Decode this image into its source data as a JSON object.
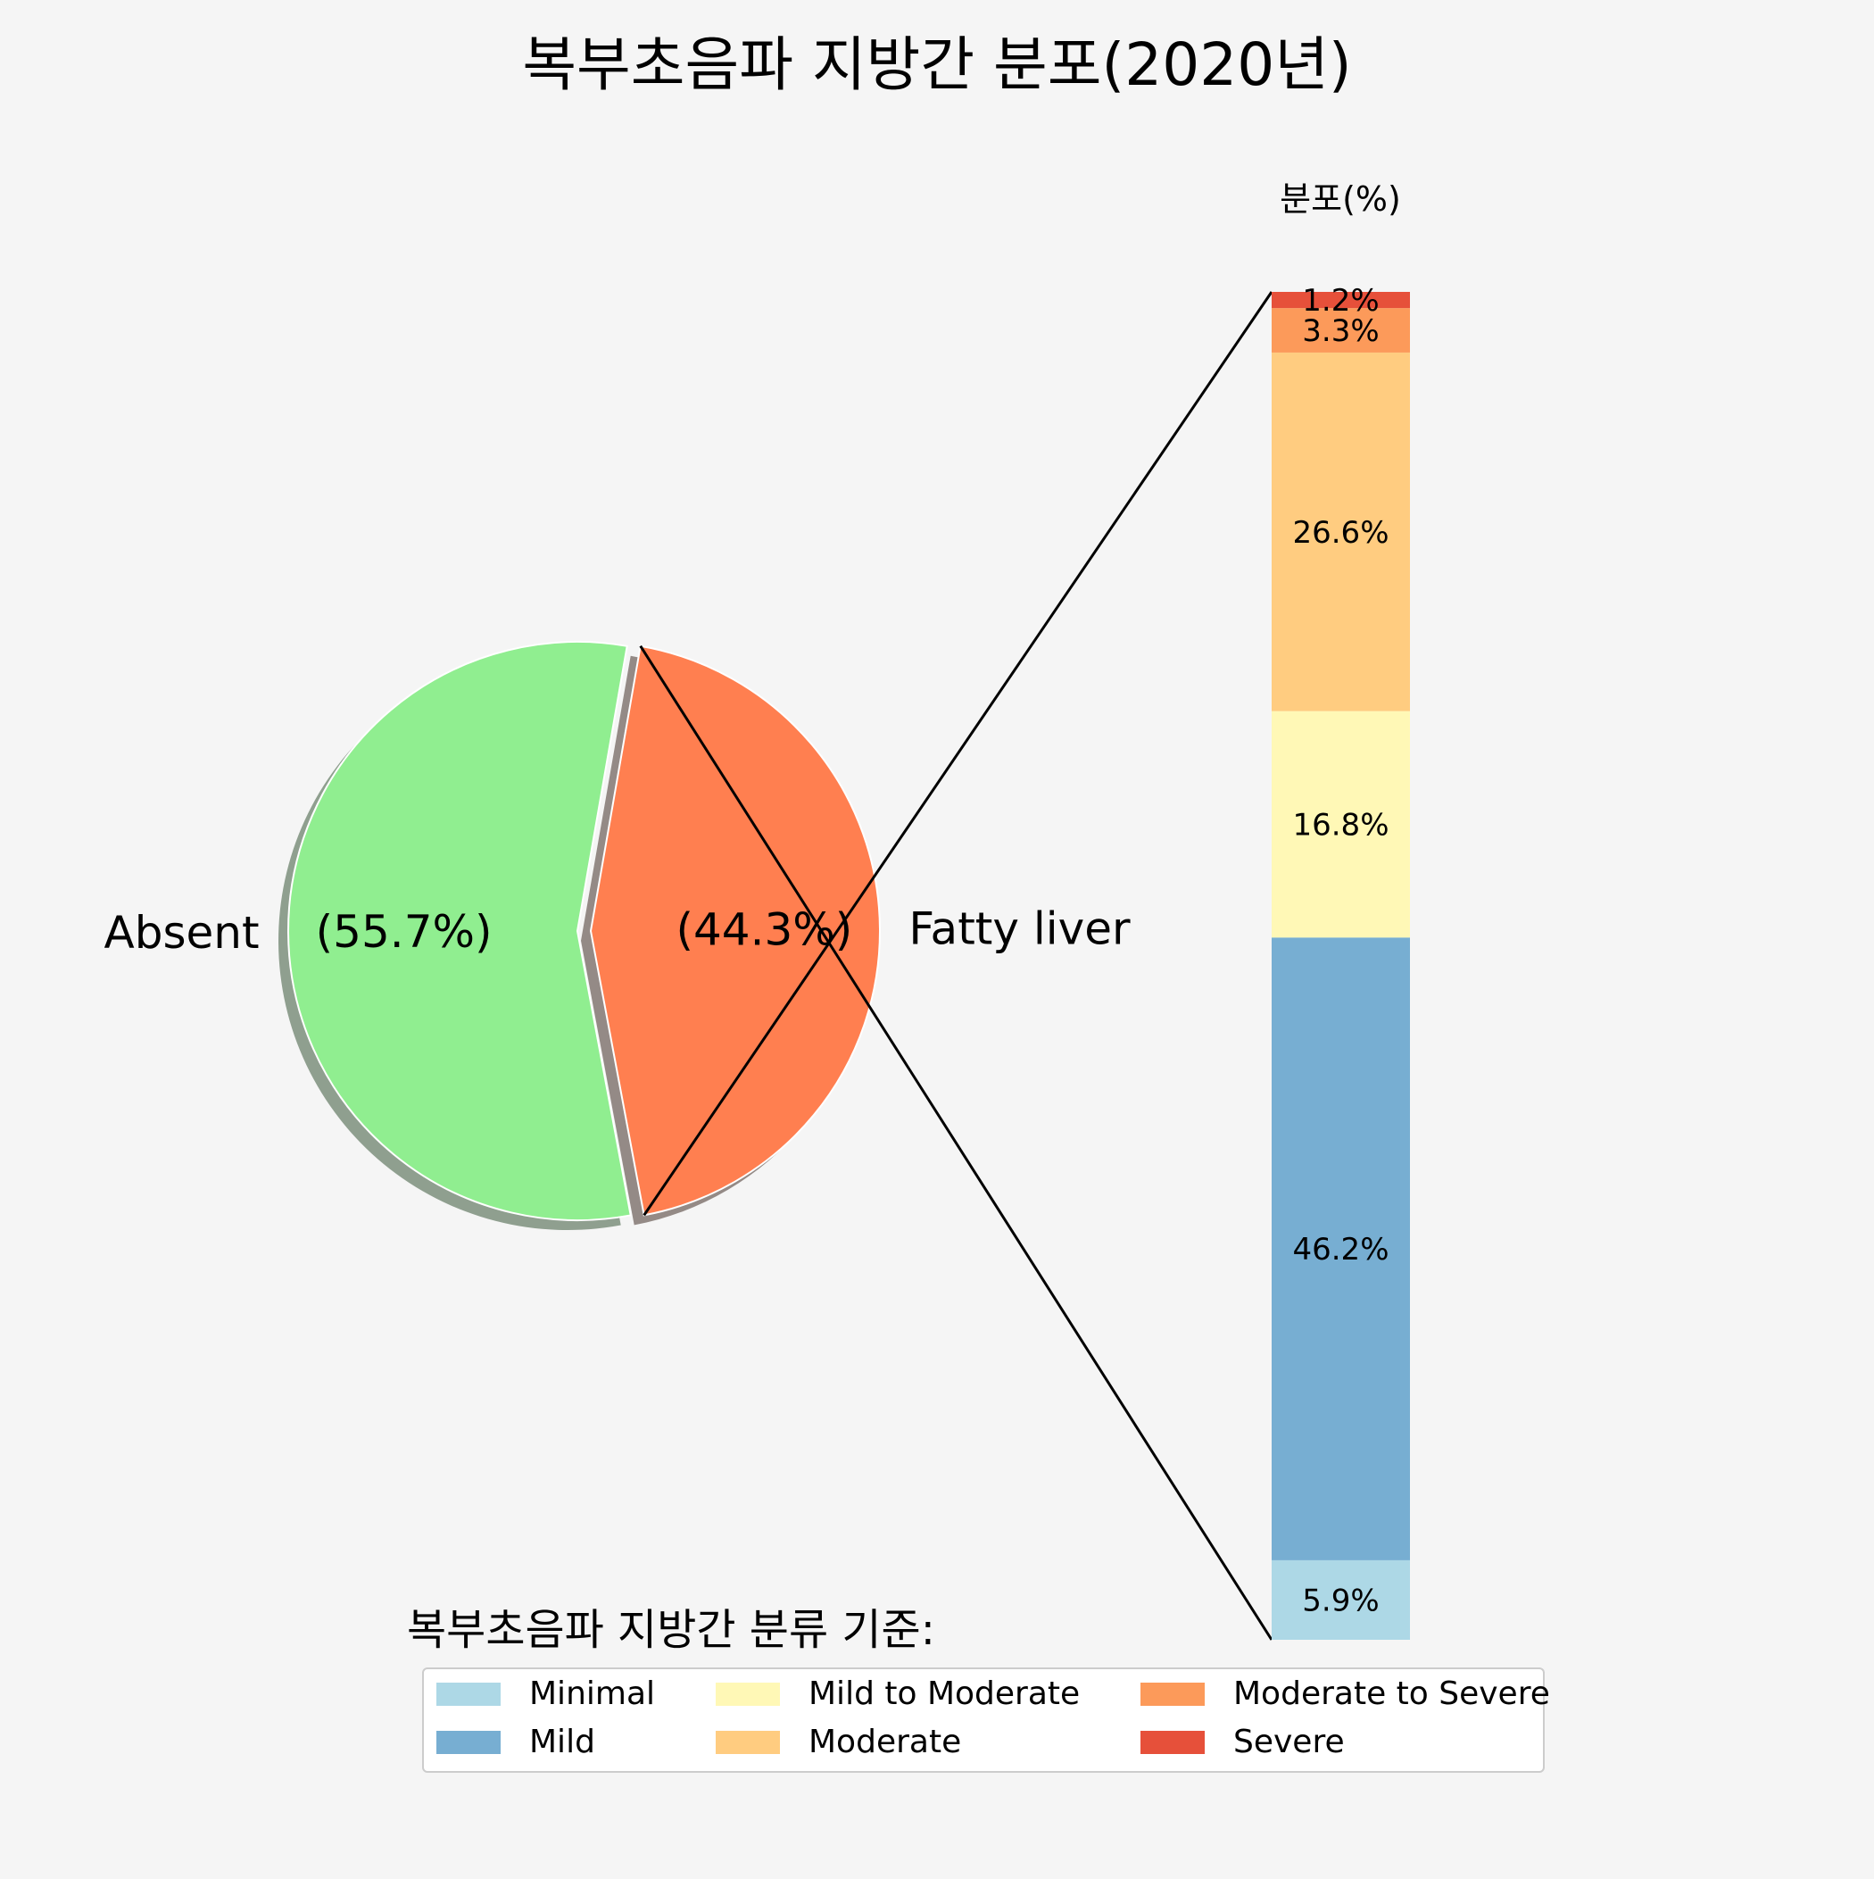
{
  "chart_data": [
    {
      "type": "pie",
      "title": "복부초음파 지방간 분포(2020년)",
      "slices": [
        {
          "label": "Absent",
          "value": 55.7,
          "pct_label": "(55.7%)",
          "color": "#90ee90",
          "shadow": "#8f9f8f"
        },
        {
          "label": "Fatty liver",
          "value": 44.3,
          "pct_label": "(44.3%)",
          "color": "#ff7f50",
          "shadow": "#948a86"
        }
      ],
      "exploded": "Fatty liver",
      "shadow": true
    },
    {
      "type": "bar",
      "stacked": true,
      "title": "분포(%)",
      "series": [
        {
          "name": "Minimal",
          "value": 5.9,
          "label": "5.9%",
          "color": "#add8e6"
        },
        {
          "name": "Mild",
          "value": 46.2,
          "label": "46.2%",
          "color": "#77aed2"
        },
        {
          "name": "Mild to Moderate",
          "value": 16.8,
          "label": "16.8%",
          "color": "#fff8b6"
        },
        {
          "name": "Moderate",
          "value": 26.6,
          "label": "26.6%",
          "color": "#ffcc80"
        },
        {
          "name": "Moderate to Severe",
          "value": 3.3,
          "label": "3.3%",
          "color": "#fc9a5a"
        },
        {
          "name": "Severe",
          "value": 1.2,
          "label": "1.2%",
          "color": "#e6503a"
        }
      ]
    }
  ],
  "legend": {
    "title": "복부초음파 지방간 분류 기준:",
    "columns": 3
  }
}
